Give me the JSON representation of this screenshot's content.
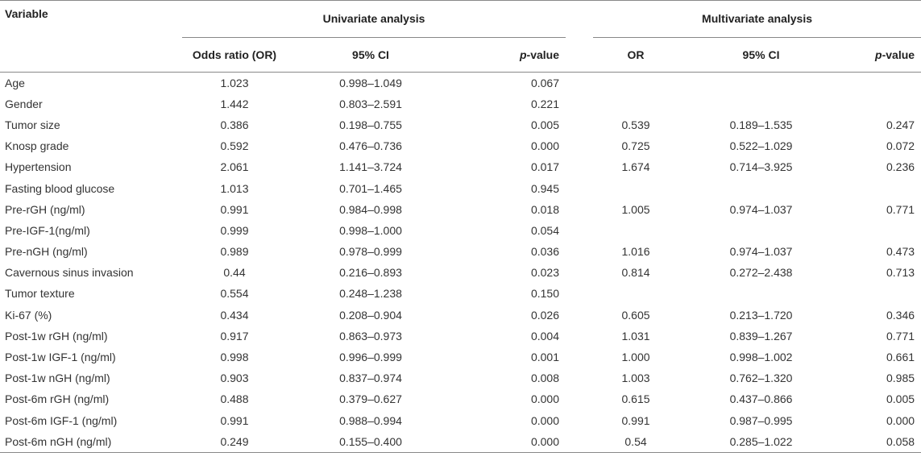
{
  "headers": {
    "variable": "Variable",
    "univariate": "Univariate analysis",
    "multivariate": "Multivariate analysis",
    "uni_or": "Odds ratio (OR)",
    "uni_ci": "95% CI",
    "uni_p_italic": "p",
    "uni_p_rest": "-value",
    "multi_or": "OR",
    "multi_ci": "95% CI",
    "multi_p_italic": "p",
    "multi_p_rest": "-value"
  },
  "rows": [
    {
      "variable": "Age",
      "uni_or": "1.023",
      "uni_ci": "0.998–1.049",
      "uni_p": "0.067",
      "multi_or": "",
      "multi_ci": "",
      "multi_p": ""
    },
    {
      "variable": "Gender",
      "uni_or": "1.442",
      "uni_ci": "0.803–2.591",
      "uni_p": "0.221",
      "multi_or": "",
      "multi_ci": "",
      "multi_p": ""
    },
    {
      "variable": "Tumor size",
      "uni_or": "0.386",
      "uni_ci": "0.198–0.755",
      "uni_p": "0.005",
      "multi_or": "0.539",
      "multi_ci": "0.189–1.535",
      "multi_p": "0.247"
    },
    {
      "variable": "Knosp grade",
      "uni_or": "0.592",
      "uni_ci": "0.476–0.736",
      "uni_p": "0.000",
      "multi_or": "0.725",
      "multi_ci": "0.522–1.029",
      "multi_p": "0.072"
    },
    {
      "variable": "Hypertension",
      "uni_or": "2.061",
      "uni_ci": "1.141–3.724",
      "uni_p": "0.017",
      "multi_or": "1.674",
      "multi_ci": "0.714–3.925",
      "multi_p": "0.236"
    },
    {
      "variable": "Fasting blood glucose",
      "uni_or": "1.013",
      "uni_ci": "0.701–1.465",
      "uni_p": "0.945",
      "multi_or": "",
      "multi_ci": "",
      "multi_p": ""
    },
    {
      "variable": "Pre-rGH (ng/ml)",
      "uni_or": "0.991",
      "uni_ci": "0.984–0.998",
      "uni_p": "0.018",
      "multi_or": "1.005",
      "multi_ci": "0.974–1.037",
      "multi_p": "0.771"
    },
    {
      "variable": "Pre-IGF-1(ng/ml)",
      "uni_or": "0.999",
      "uni_ci": "0.998–1.000",
      "uni_p": "0.054",
      "multi_or": "",
      "multi_ci": "",
      "multi_p": ""
    },
    {
      "variable": "Pre-nGH (ng/ml)",
      "uni_or": "0.989",
      "uni_ci": "0.978–0.999",
      "uni_p": "0.036",
      "multi_or": "1.016",
      "multi_ci": "0.974–1.037",
      "multi_p": "0.473"
    },
    {
      "variable": "Cavernous sinus invasion",
      "uni_or": "0.44",
      "uni_ci": "0.216–0.893",
      "uni_p": "0.023",
      "multi_or": "0.814",
      "multi_ci": "0.272–2.438",
      "multi_p": "0.713"
    },
    {
      "variable": "Tumor texture",
      "uni_or": "0.554",
      "uni_ci": "0.248–1.238",
      "uni_p": "0.150",
      "multi_or": "",
      "multi_ci": "",
      "multi_p": ""
    },
    {
      "variable": "Ki-67 (%)",
      "uni_or": "0.434",
      "uni_ci": "0.208–0.904",
      "uni_p": "0.026",
      "multi_or": "0.605",
      "multi_ci": "0.213–1.720",
      "multi_p": "0.346"
    },
    {
      "variable": "Post-1w rGH (ng/ml)",
      "uni_or": "0.917",
      "uni_ci": "0.863–0.973",
      "uni_p": "0.004",
      "multi_or": "1.031",
      "multi_ci": "0.839–1.267",
      "multi_p": "0.771"
    },
    {
      "variable": "Post-1w IGF-1 (ng/ml)",
      "uni_or": "0.998",
      "uni_ci": "0.996–0.999",
      "uni_p": "0.001",
      "multi_or": "1.000",
      "multi_ci": "0.998–1.002",
      "multi_p": "0.661"
    },
    {
      "variable": "Post-1w nGH (ng/ml)",
      "uni_or": "0.903",
      "uni_ci": "0.837–0.974",
      "uni_p": "0.008",
      "multi_or": "1.003",
      "multi_ci": "0.762–1.320",
      "multi_p": "0.985"
    },
    {
      "variable": "Post-6m rGH (ng/ml)",
      "uni_or": "0.488",
      "uni_ci": "0.379–0.627",
      "uni_p": "0.000",
      "multi_or": "0.615",
      "multi_ci": "0.437–0.866",
      "multi_p": "0.005"
    },
    {
      "variable": "Post-6m IGF-1 (ng/ml)",
      "uni_or": "0.991",
      "uni_ci": "0.988–0.994",
      "uni_p": "0.000",
      "multi_or": "0.991",
      "multi_ci": "0.987–0.995",
      "multi_p": "0.000"
    },
    {
      "variable": "Post-6m nGH (ng/ml)",
      "uni_or": "0.249",
      "uni_ci": "0.155–0.400",
      "uni_p": "0.000",
      "multi_or": "0.54",
      "multi_ci": "0.285–1.022",
      "multi_p": "0.058"
    }
  ]
}
